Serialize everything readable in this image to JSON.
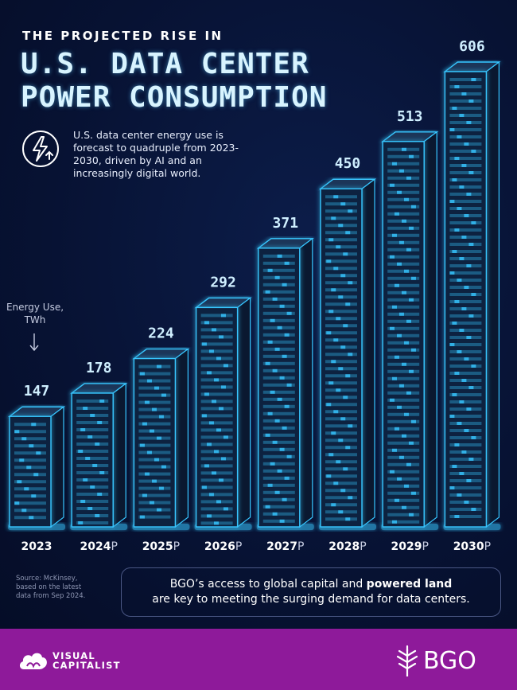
{
  "header": {
    "kicker": "THE PROJECTED RISE IN",
    "title": "U.S. DATA CENTER POWER CONSUMPTION",
    "description": "U.S. data center energy use is forecast to quadruple from 2023-2030, driven by AI and an increasingly digital world."
  },
  "axis_note": {
    "line1": "Energy Use,",
    "line2": "TWh"
  },
  "chart_data": {
    "type": "bar",
    "title": "U.S. DATA CENTER POWER CONSUMPTION",
    "ylabel": "Energy Use, TWh",
    "categories": [
      "2023",
      "2024",
      "2025",
      "2026",
      "2027",
      "2028",
      "2029",
      "2030"
    ],
    "category_suffix": [
      "",
      "P",
      "P",
      "P",
      "P",
      "P",
      "P",
      "P"
    ],
    "values": [
      147,
      178,
      224,
      292,
      371,
      450,
      513,
      606
    ],
    "ylim": [
      0,
      606
    ],
    "grid": false,
    "bar_style": "server-rack",
    "colors": {
      "glow": "#37c6ff",
      "rack_front": "#0f2340",
      "rack_side": "#0a1830",
      "rack_top": "#1a3558"
    }
  },
  "source": {
    "line1": "Source: McKinsey,",
    "line2": "based on the latest",
    "line3": "data from Sep 2024."
  },
  "callout": {
    "part1": "BGO’s access to global capital and ",
    "bold": "powered land",
    "part2": "are key to meeting the surging demand for data centers."
  },
  "footer": {
    "vc_line1": "VISUAL",
    "vc_line2": "CAPITALIST",
    "bgo": "BGO",
    "vc_icon": "cloud-logo-icon",
    "bgo_icon": "leaf-logo-icon"
  },
  "colors": {
    "background": "#071233",
    "footer": "#8e1a9a",
    "accent": "#37c6ff"
  }
}
